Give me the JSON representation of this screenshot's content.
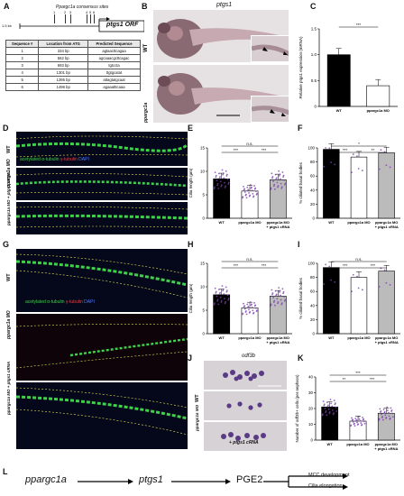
{
  "panels": {
    "A": {
      "label": "A",
      "consensus_label": "Ppargc1a consensus sites",
      "scale_label": "1.5 kb",
      "gene": "ptgs1 ORF",
      "site_numbers": [
        "1",
        "2",
        "3",
        "4",
        "5",
        "6"
      ],
      "table_headers": [
        "Sequence #",
        "Location from ATG",
        "Predicted Sequence"
      ],
      "rows": [
        [
          "1",
          "334 bp",
          "agtaacttcagaa"
        ],
        [
          "2",
          "562 bp",
          "agcaaacgcttcagac"
        ],
        [
          "3",
          "693 bp",
          "tgtccta"
        ],
        [
          "4",
          "1301 bp",
          "ttgtgcatat"
        ],
        [
          "5",
          "1395 bp",
          "attagtatgcaat"
        ],
        [
          "6",
          "1496 bp",
          "agaaatttcaaa"
        ]
      ]
    },
    "B": {
      "label": "B",
      "title": "ptgs1",
      "row1": "WT",
      "row2": "ppargc1a"
    },
    "C": {
      "label": "C",
      "ylabel": "Relative ptgs1 expression (mRNA)",
      "sig": "***"
    },
    "D": {
      "label": "D",
      "rows": [
        "WT",
        "ppargc1a MO",
        "ppargc1a MO + ptgs1 cRNA"
      ],
      "stain": [
        "acetylated α-tubulin",
        "γ-tubulin",
        "DAPI"
      ]
    },
    "E": {
      "label": "E",
      "ylabel": "Cilia length (µm)",
      "sig": [
        "n.s.",
        "***",
        "***"
      ]
    },
    "F": {
      "label": "F",
      "ylabel": "% ciliated basal bodies",
      "sig": [
        "*",
        "***",
        "**"
      ]
    },
    "G": {
      "label": "G",
      "rows": [
        "WT",
        "ppargc1a MO",
        "ppargc1a MO + ptgs1 cRNA"
      ],
      "stain": [
        "acetylated α-tubulin",
        "γ-tubulin",
        "DAPI"
      ]
    },
    "H": {
      "label": "H",
      "ylabel": "Cilia length (µm)",
      "sig": [
        "n.s.",
        "***",
        "***"
      ]
    },
    "I": {
      "label": "I",
      "ylabel": "% ciliated basal bodies",
      "sig": [
        "n.s.",
        "***",
        "***"
      ]
    },
    "J": {
      "label": "J",
      "title": "odf3b",
      "rows": [
        "WT",
        "ppargc1a MO",
        "+ ptgs1 cRNA"
      ]
    },
    "K": {
      "label": "K",
      "ylabel": "Number of odf3b+ cells (per nephron)",
      "sig": [
        "***",
        "**",
        "***"
      ]
    },
    "L": {
      "label": "L",
      "nodes": [
        "ppargc1a",
        "ptgs1",
        "PGE2"
      ],
      "outcomes": [
        "MCC development",
        "Cilia elongation"
      ]
    }
  },
  "chart_data": [
    {
      "type": "bar",
      "panel": "C",
      "categories": [
        "WT",
        "ppargc1a MO"
      ],
      "values": [
        1.0,
        0.4
      ],
      "ylim": [
        0,
        1.5
      ],
      "yticks": [
        "0",
        "0.5",
        "1.0",
        "1.5"
      ],
      "colors": [
        "#000000",
        "#ffffff"
      ]
    },
    {
      "type": "bar",
      "panel": "E",
      "categories": [
        "WT",
        "ppargc1a MO",
        "ppargc1a MO + ptgs1 cRNA"
      ],
      "values": [
        8.4,
        5.8,
        8.2
      ],
      "ylim": [
        0,
        15
      ],
      "yticks": [
        "0",
        "5",
        "10",
        "15"
      ],
      "colors": [
        "#000000",
        "#ffffff",
        "#bbbbbb"
      ]
    },
    {
      "type": "bar",
      "panel": "F",
      "categories": [
        "WT",
        "ppargc1a MO",
        "ppargc1a MO + ptgs1 cRNA"
      ],
      "values": [
        98,
        87,
        93
      ],
      "ylim": [
        0,
        100
      ],
      "yticks": [
        "0",
        "20",
        "40",
        "60",
        "80",
        "100"
      ],
      "colors": [
        "#000000",
        "#ffffff",
        "#bbbbbb"
      ]
    },
    {
      "type": "bar",
      "panel": "H",
      "categories": [
        "WT",
        "ppargc1a MO",
        "ppargc1a MO + ptgs1 cRNA"
      ],
      "values": [
        8.3,
        5.5,
        8.0
      ],
      "ylim": [
        0,
        15
      ],
      "yticks": [
        "0",
        "5",
        "10",
        "15"
      ],
      "colors": [
        "#000000",
        "#ffffff",
        "#bbbbbb"
      ]
    },
    {
      "type": "bar",
      "panel": "I",
      "categories": [
        "WT",
        "ppargc1a MO",
        "ppargc1a MO + ptgs1 cRNA"
      ],
      "values": [
        94,
        80,
        89
      ],
      "ylim": [
        0,
        100
      ],
      "yticks": [
        "0",
        "20",
        "40",
        "60",
        "80",
        "100"
      ],
      "colors": [
        "#000000",
        "#ffffff",
        "#bbbbbb"
      ]
    },
    {
      "type": "bar",
      "panel": "K",
      "categories": [
        "WT",
        "ppargc1a MO",
        "ppargc1a MO + ptgs1 cRNA"
      ],
      "values": [
        21,
        12,
        17
      ],
      "ylim": [
        0,
        40
      ],
      "yticks": [
        "0",
        "10",
        "20",
        "30",
        "40"
      ],
      "colors": [
        "#000000",
        "#ffffff",
        "#bbbbbb"
      ]
    }
  ]
}
